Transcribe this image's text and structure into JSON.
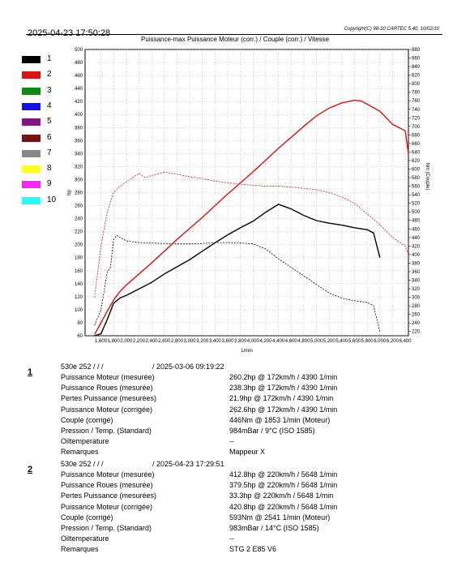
{
  "header": {
    "date": "2025-04-23 17:50:28",
    "copyright": "Copyright(C) 98-10 CARTEC 5.40, 10/02/10",
    "title": "Puissance-max Puissance Moteur (corr.) / Couple (corr.) / Vitesse"
  },
  "legend": [
    {
      "label": "1",
      "color": "#000000"
    },
    {
      "label": "2",
      "color": "#dd1111"
    },
    {
      "label": "3",
      "color": "#118811"
    },
    {
      "label": "4",
      "color": "#1111ee"
    },
    {
      "label": "5",
      "color": "#881188"
    },
    {
      "label": "6",
      "color": "#771111"
    },
    {
      "label": "7",
      "color": "#888888"
    },
    {
      "label": "8",
      "color": "#ffff22"
    },
    {
      "label": "9",
      "color": "#ff22ff"
    },
    {
      "label": "10",
      "color": "#22ffff"
    }
  ],
  "chart_data": {
    "type": "line",
    "title": "Puissance-max Puissance Moteur (corr.) / Couple (corr.) / Vitesse",
    "xlabel": "1/min",
    "ylabel": "hp",
    "y2label": "Nm (Couple)",
    "xlim": [
      1350,
      6450
    ],
    "ylim": [
      60,
      500
    ],
    "y2lim": [
      210,
      880
    ],
    "grid": true,
    "x_ticks": [
      1600,
      1800,
      2000,
      2200,
      2400,
      2600,
      2800,
      3000,
      3200,
      3400,
      3600,
      3800,
      4000,
      4200,
      4400,
      4600,
      4800,
      5000,
      5200,
      5400,
      5600,
      5800,
      6000,
      6200,
      6400
    ],
    "x_tick_labels": [
      "1,600",
      "1,800",
      "2,000",
      "2,200",
      "2,400",
      "2,600",
      "2,800",
      "3,000",
      "3,200",
      "3,400",
      "3,600",
      "3,800",
      "4,000",
      "4,200",
      "4,400",
      "4,600",
      "4,800",
      "5,000",
      "5,200",
      "5,400",
      "5,600",
      "5,800",
      "6,000",
      "6,200",
      "6,400"
    ],
    "y_ticks": [
      60,
      80,
      100,
      120,
      140,
      160,
      180,
      200,
      220,
      240,
      260,
      280,
      300,
      320,
      340,
      360,
      380,
      400,
      420,
      440,
      460,
      480,
      500
    ],
    "y2_ticks": [
      220,
      240,
      260,
      280,
      300,
      320,
      340,
      360,
      380,
      400,
      420,
      440,
      460,
      480,
      500,
      520,
      540,
      560,
      580,
      600,
      620,
      640,
      660,
      680,
      700,
      720,
      740,
      760,
      780,
      800,
      820,
      840,
      860,
      880
    ],
    "series": [
      {
        "name": "1",
        "color": "#000000",
        "style": "solid",
        "axis": "left",
        "x": [
          1500,
          1600,
          1700,
          1800,
          1900,
          2000,
          2200,
          2400,
          2600,
          2800,
          3000,
          3200,
          3400,
          3600,
          3800,
          4000,
          4200,
          4400,
          4600,
          4800,
          5000,
          5200,
          5400,
          5600,
          5800,
          5900,
          6000
        ],
        "y": [
          60,
          63,
          85,
          110,
          118,
          122,
          132,
          142,
          155,
          166,
          177,
          190,
          203,
          215,
          226,
          236,
          250,
          262,
          255,
          245,
          237,
          233,
          230,
          226,
          223,
          218,
          180
        ]
      },
      {
        "name": "1",
        "color": "#000000",
        "style": "dashed",
        "axis": "right",
        "x": [
          1500,
          1600,
          1700,
          1750,
          1800,
          1850,
          1900,
          2000,
          2200,
          2400,
          2600,
          2800,
          3000,
          3200,
          3400,
          3600,
          3800,
          4000,
          4200,
          4400,
          4600,
          4800,
          5000,
          5200,
          5400,
          5600,
          5800,
          5900,
          6000
        ],
        "y": [
          235,
          270,
          360,
          370,
          435,
          445,
          440,
          432,
          428,
          427,
          426,
          425,
          425,
          426,
          428,
          428,
          427,
          425,
          413,
          390,
          370,
          350,
          330,
          310,
          298,
          292,
          288,
          280,
          220
        ]
      },
      {
        "name": "2",
        "color": "#dd1111",
        "style": "solid",
        "axis": "left",
        "x": [
          1500,
          1600,
          1700,
          1800,
          1900,
          2000,
          2200,
          2400,
          2600,
          2800,
          3000,
          3200,
          3400,
          3600,
          3800,
          4000,
          4200,
          4400,
          4600,
          4800,
          5000,
          5200,
          5400,
          5600,
          5700,
          5800,
          6000,
          6200,
          6400,
          6450
        ],
        "y": [
          62,
          80,
          98,
          115,
          128,
          138,
          155,
          172,
          190,
          208,
          225,
          242,
          260,
          278,
          295,
          312,
          330,
          348,
          365,
          382,
          398,
          410,
          418,
          422,
          421,
          416,
          405,
          385,
          375,
          340
        ]
      },
      {
        "name": "2",
        "color": "#dd1111",
        "style": "dashed",
        "axis": "right",
        "x": [
          1500,
          1600,
          1700,
          1800,
          1900,
          2000,
          2200,
          2300,
          2400,
          2600,
          2800,
          3000,
          3200,
          3400,
          3600,
          3800,
          4000,
          4200,
          4400,
          4600,
          4800,
          5000,
          5200,
          5400,
          5600,
          5800,
          6000,
          6200,
          6400,
          6450
        ],
        "y": [
          300,
          420,
          500,
          545,
          560,
          570,
          590,
          580,
          585,
          593,
          588,
          582,
          578,
          572,
          568,
          565,
          562,
          560,
          560,
          558,
          555,
          552,
          545,
          535,
          520,
          495,
          470,
          440,
          420,
          400
        ]
      }
    ]
  },
  "runs": [
    {
      "number": "1",
      "header_left": "530e 252 /  /  /",
      "header_right": "/ 2025-03-06 09:19:22",
      "rows": [
        {
          "label": "Puissance Moteur (mesurée)",
          "value": "260.2hp @ 172km/h / 4390 1/min"
        },
        {
          "label": "Puissance Roues (mesurée)",
          "value": "238.3hp @ 172km/h / 4390 1/min"
        },
        {
          "label": "Pertes Puissance (mesurées)",
          "value": "21.9hp @ 172km/h / 4390 1/min"
        },
        {
          "label": "Puissance Moteur (corrigée)",
          "value": "262.6hp @ 172km/h / 4390 1/min"
        },
        {
          "label": "Couple (corrigé)",
          "value": "446Nm @ 1853 1/min (Moteur)"
        },
        {
          "label": "Pression / Temp. (Standard)",
          "value": "984mBar / 9°C    (ISO 1585)"
        },
        {
          "label": "Oiltemperature",
          "value": "--"
        },
        {
          "label": "Remarques",
          "value": "Mappeur X"
        }
      ]
    },
    {
      "number": "2",
      "header_left": "530e 252 /  /  /",
      "header_right": "/ 2025-04-23 17:29:51",
      "rows": [
        {
          "label": "Puissance Moteur (mesurée)",
          "value": "412.8hp @ 220km/h / 5648 1/min"
        },
        {
          "label": "Puissance Roues (mesurée)",
          "value": "379.5hp @ 220km/h / 5648 1/min"
        },
        {
          "label": "Pertes Puissance (mesurées)",
          "value": "33.3hp @ 220km/h / 5648 1/min"
        },
        {
          "label": "Puissance Moteur (corrigée)",
          "value": "420.8hp @ 220km/h / 5648 1/min"
        },
        {
          "label": "Couple (corrigé)",
          "value": "593Nm @ 2541 1/min (Moteur)"
        },
        {
          "label": "Pression / Temp. (Standard)",
          "value": "983mBar / 14°C    (ISO 1585)"
        },
        {
          "label": "Oiltemperature",
          "value": "--"
        },
        {
          "label": "Remarques",
          "value": "STG 2 E85 V6"
        }
      ]
    }
  ]
}
